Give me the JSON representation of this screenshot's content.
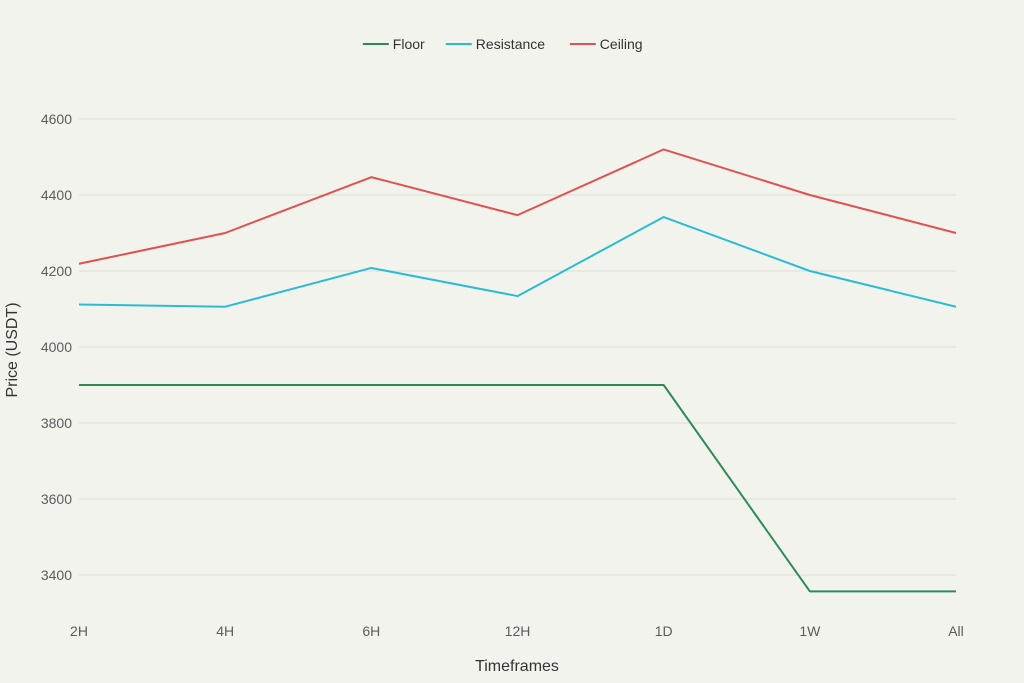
{
  "chart_data": {
    "type": "line",
    "x": [
      "2H",
      "4H",
      "6H",
      "12H",
      "1D",
      "1W",
      "All"
    ],
    "series": [
      {
        "name": "Floor",
        "color": "#2e8b57",
        "values": [
          3900,
          3900,
          3900,
          3900,
          3900,
          3357,
          3357
        ]
      },
      {
        "name": "Resistance",
        "color": "#2bbcd4",
        "values": [
          4112,
          4106,
          4208,
          4134,
          4342,
          4200,
          4106
        ]
      },
      {
        "name": "Ceiling",
        "color": "#e05252",
        "values": [
          4219,
          4300,
          4447,
          4347,
          4520,
          4400,
          4300
        ]
      }
    ],
    "title": "",
    "xlabel": "Timeframes",
    "ylabel": "Price (USDT)",
    "ylim": [
      3300,
      4650
    ],
    "yticks": [
      3400,
      3600,
      3800,
      4000,
      4200,
      4400,
      4600
    ],
    "grid": true,
    "legend_position": "top-center"
  }
}
